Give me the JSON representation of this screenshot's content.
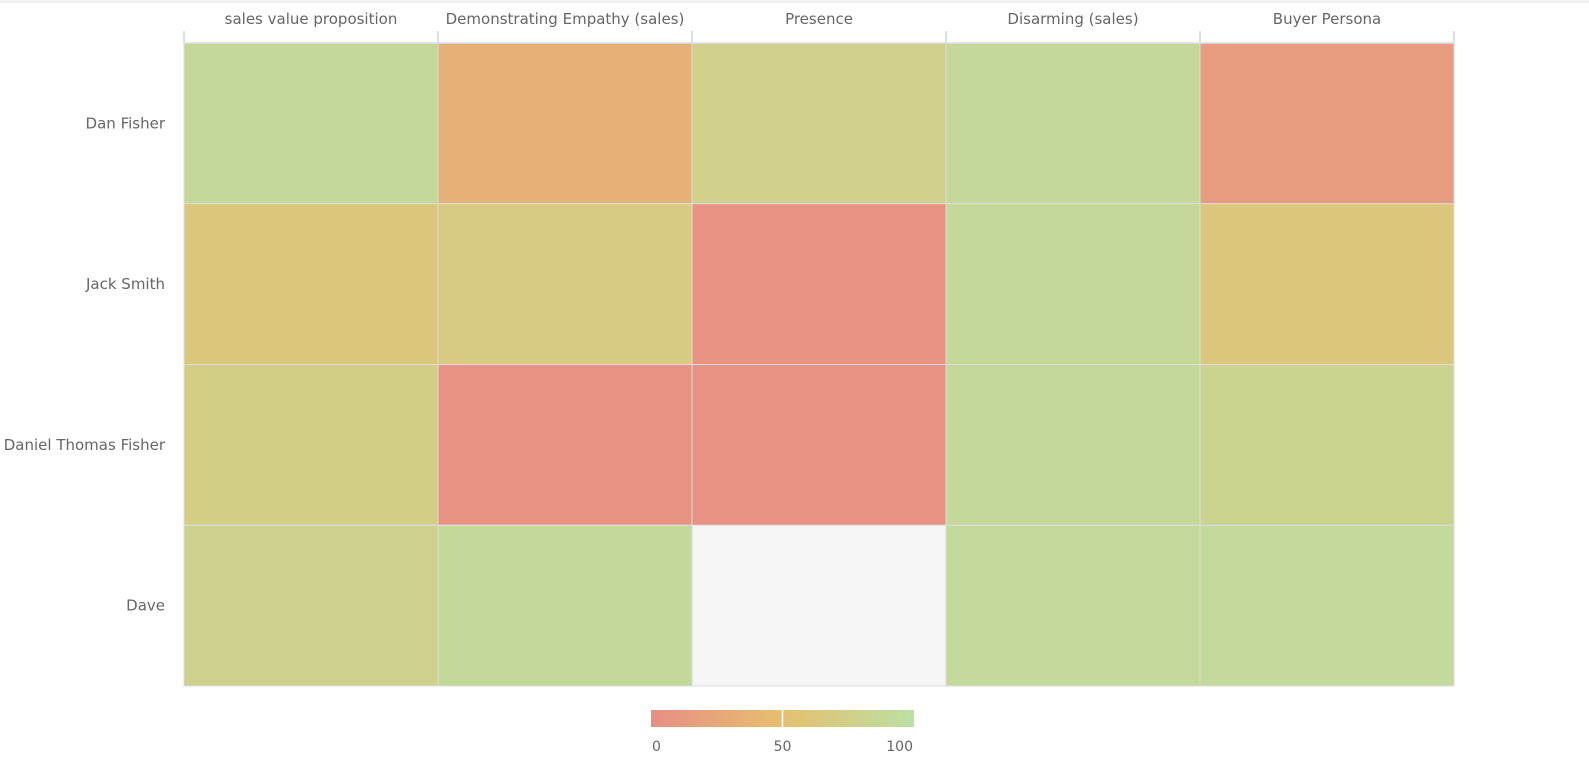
{
  "chart_data": {
    "type": "heatmap",
    "title": "",
    "columns": [
      "sales value proposition",
      "Demonstrating Empathy (sales)",
      "Presence",
      "Disarming (sales)",
      "Buyer Persona"
    ],
    "rows": [
      "Dan Fisher",
      "Jack Smith",
      "Daniel Thomas Fisher",
      "Dave"
    ],
    "values": [
      [
        90,
        35,
        76,
        90,
        14
      ],
      [
        62,
        66,
        4,
        90,
        62
      ],
      [
        72,
        4,
        4,
        90,
        80
      ],
      [
        78,
        90,
        null,
        92,
        92
      ]
    ],
    "color_scale": {
      "min": 0,
      "max": 100,
      "ticks": [
        "0",
        "50",
        "100"
      ],
      "stops": [
        "#e88e85",
        "#e5c06f",
        "#bcdfa4"
      ],
      "missing_color": "#f5f5f5"
    },
    "legend_position": "bottom-center"
  }
}
